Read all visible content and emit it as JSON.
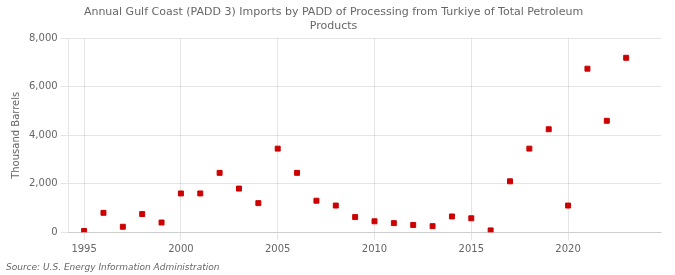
{
  "chart_data": {
    "type": "scatter",
    "title": [
      "Annual Gulf Coast (PADD 3) Imports by PADD of Processing from Turkiye of Total Petroleum",
      "Products"
    ],
    "ylabel": "Thousand Barrels",
    "source": "Source: U.S. Energy Information Administration",
    "color": "#cc0000",
    "marker": "square",
    "grid": true,
    "xlim": [
      1994.2,
      2024.8
    ],
    "ylim": [
      0,
      8000
    ],
    "xticks": [
      1995,
      2000,
      2005,
      2010,
      2015,
      2020
    ],
    "yticks": [
      0,
      {
        "value": 2000,
        "label": "2,000"
      },
      {
        "value": 4000,
        "label": "4,000"
      },
      {
        "value": 6000,
        "label": "6,000"
      },
      {
        "value": 8000,
        "label": "8,000"
      }
    ],
    "x": [
      1995,
      1996,
      1997,
      1998,
      1999,
      2000,
      2001,
      2002,
      2003,
      2004,
      2005,
      2006,
      2007,
      2008,
      2009,
      2010,
      2011,
      2012,
      2013,
      2014,
      2015,
      2016,
      2017,
      2018,
      2019,
      2020,
      2021,
      2022,
      2023
    ],
    "values": [
      50,
      800,
      225,
      750,
      400,
      1600,
      1600,
      2450,
      1800,
      1200,
      3450,
      2450,
      1300,
      1100,
      625,
      450,
      375,
      300,
      250,
      650,
      575,
      75,
      2100,
      3450,
      4250,
      1100,
      6750,
      4600,
      7200
    ]
  }
}
